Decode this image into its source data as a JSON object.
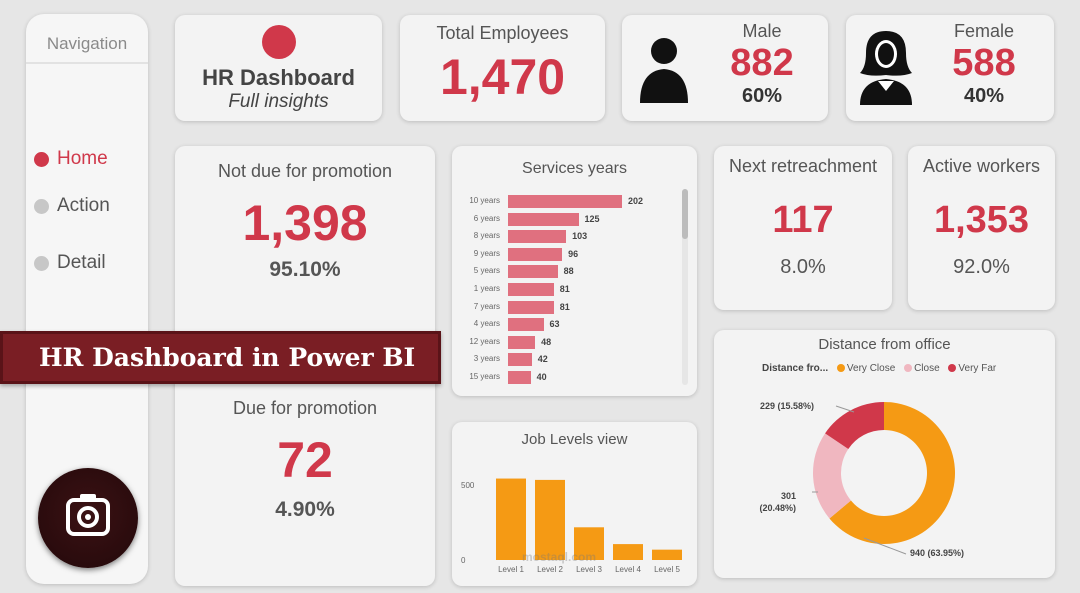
{
  "navigation": {
    "title": "Navigation",
    "items": [
      {
        "label": "Home",
        "active": true
      },
      {
        "label": "Action",
        "active": false
      },
      {
        "label": "Detail",
        "active": false
      }
    ]
  },
  "header": {
    "title": "HR Dashboard",
    "subtitle": "Full insights"
  },
  "total_employees": {
    "label": "Total Employees",
    "value": "1,470"
  },
  "male": {
    "label": "Male",
    "value": "882",
    "pct": "60%"
  },
  "female": {
    "label": "Female",
    "value": "588",
    "pct": "40%"
  },
  "not_due": {
    "label": "Not due for promotion",
    "value": "1,398",
    "pct": "95.10%"
  },
  "due": {
    "label": "Due for promotion",
    "value": "72",
    "pct": "4.90%"
  },
  "next_retire": {
    "label": "Next retreachment",
    "value": "117",
    "pct": "8.0%"
  },
  "active_workers": {
    "label": "Active workers",
    "value": "1,353",
    "pct": "92.0%"
  },
  "banner": {
    "text": "HR Dashboard in Power BI"
  },
  "watermark": {
    "text": "mostaql.com"
  },
  "colors": {
    "accent": "#d0384a",
    "bar_pink": "#e0707f",
    "orange": "#f59a14",
    "light_pink": "#f0b7c0",
    "banner": "#7a1e24"
  },
  "chart_data": [
    {
      "type": "bar",
      "title": "Services years",
      "orientation": "horizontal",
      "categories": [
        "10 years",
        "6 years",
        "8 years",
        "9 years",
        "5 years",
        "1 years",
        "7 years",
        "4 years",
        "12 years",
        "3 years",
        "15 years"
      ],
      "values": [
        202,
        125,
        103,
        96,
        88,
        81,
        81,
        63,
        48,
        42,
        40
      ]
    },
    {
      "type": "bar",
      "title": "Job Levels view",
      "categories": [
        "Level 1",
        "Level 2",
        "Level 3",
        "Level 4",
        "Level 5"
      ],
      "values": [
        543,
        534,
        218,
        106,
        69
      ],
      "yticks": [
        "500",
        "0"
      ],
      "ylim": [
        0,
        600
      ]
    },
    {
      "type": "pie",
      "title": "Distance from office",
      "legend_title": "Distance fro...",
      "legend_position": "top",
      "labels": [
        "Very Close",
        "Close",
        "Very Far"
      ],
      "values": [
        940,
        301,
        229
      ],
      "value_labels": [
        "940 (63.95%)",
        "301\n(20.48%)",
        "229 (15.58%)"
      ],
      "colors": [
        "#f59a14",
        "#f0b7c0",
        "#d0384a"
      ]
    }
  ]
}
